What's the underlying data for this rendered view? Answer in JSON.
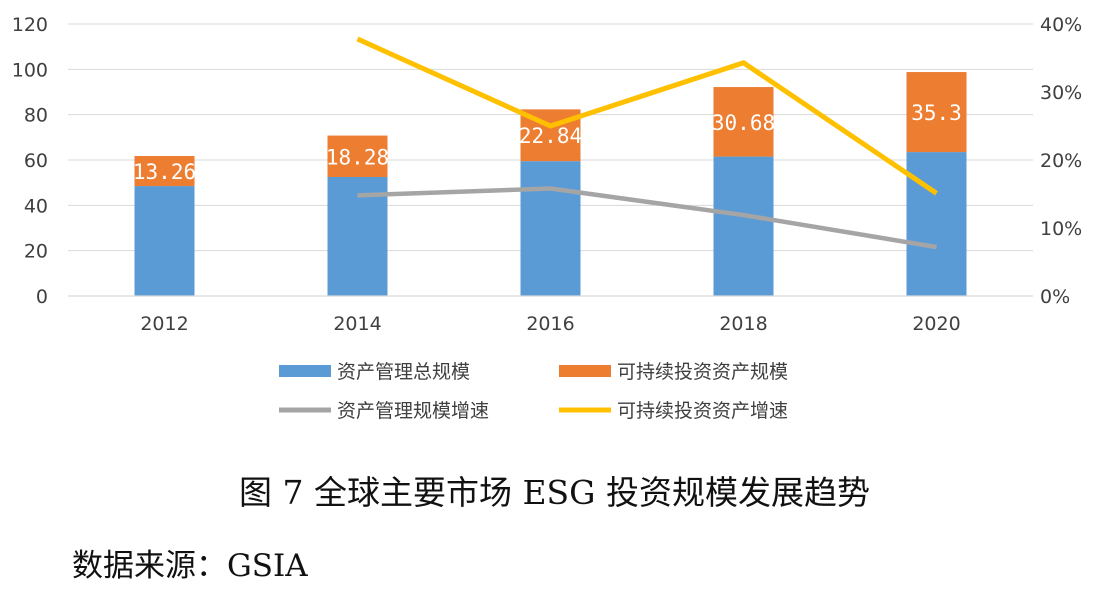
{
  "chart_data": {
    "type": "bar",
    "categories": [
      "2012",
      "2014",
      "2016",
      "2018",
      "2020"
    ],
    "ylim": [
      0,
      120
    ],
    "yticks": [
      0,
      20,
      40,
      60,
      80,
      100,
      120
    ],
    "y2lim": [
      0,
      0.4
    ],
    "y2ticks": [
      "0%",
      "10%",
      "20%",
      "30%",
      "40%"
    ],
    "bar_series": [
      {
        "name": "资产管理总规模",
        "color": "#5B9BD5",
        "values": [
          48.5,
          52.5,
          59.5,
          61.5,
          63.5
        ]
      },
      {
        "name": "可持续投资资产规模",
        "color": "#ED7D31",
        "values": [
          13.26,
          18.28,
          22.84,
          30.68,
          35.3
        ],
        "labels": [
          "13.26",
          "18.28",
          "22.84",
          "30.68",
          "35.3"
        ]
      }
    ],
    "line_series": [
      {
        "name": "资产管理规模增速",
        "color": "#A5A5A5",
        "values": [
          null,
          0.148,
          0.158,
          0.119,
          0.072
        ]
      },
      {
        "name": "可持续投资资产增速",
        "color": "#FFC000",
        "values": [
          null,
          0.378,
          0.25,
          0.343,
          0.151
        ]
      }
    ],
    "legend_position": "bottom"
  },
  "caption": "图 7  全球主要市场 ESG 投资规模发展趋势",
  "source": "数据来源：GSIA"
}
